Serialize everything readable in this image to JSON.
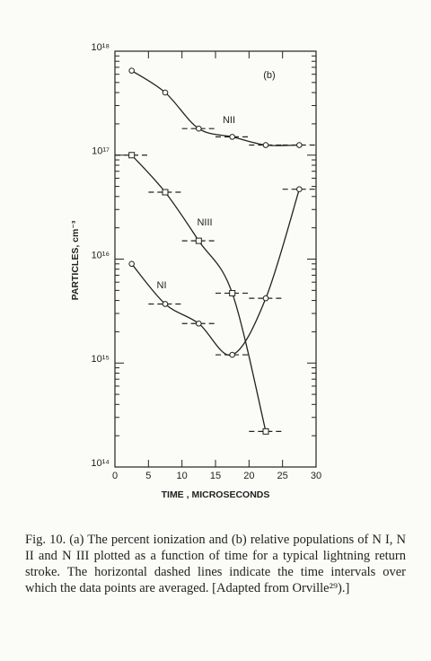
{
  "chart_data": {
    "type": "line",
    "annotation": "(b)",
    "x_label": "TIME , MICROSECONDS",
    "y_label": "PARTICLES, cm⁻³",
    "log_y": true,
    "xlim": [
      0,
      30
    ],
    "xticks": [
      0,
      5,
      10,
      15,
      20,
      25,
      30
    ],
    "ylim": [
      100000000000000.0,
      1e+18
    ],
    "yticks": [
      {
        "value": 100000000000000.0,
        "label": "10¹⁴"
      },
      {
        "value": 1000000000000000.0,
        "label": "10¹⁵"
      },
      {
        "value": 1e+16,
        "label": "10¹⁶"
      },
      {
        "value": 1e+17,
        "label": "10¹⁷"
      },
      {
        "value": 1e+18,
        "label": "10¹⁸"
      }
    ],
    "series": [
      {
        "name": "NII",
        "color": "#222222",
        "marker": "circle",
        "x": [
          2.5,
          7.5,
          12.5,
          17.5,
          22.5,
          27.5
        ],
        "values": [
          6.5e+17,
          4e+17,
          1.8e+17,
          1.5e+17,
          1.25e+17,
          1.25e+17
        ],
        "xerr": [
          null,
          null,
          2.5,
          2.5,
          2.5,
          2.5
        ]
      },
      {
        "name": "NIII",
        "color": "#222222",
        "marker": "square",
        "x": [
          2.5,
          7.5,
          12.5,
          17.5,
          22.5
        ],
        "values": [
          1e+17,
          4.4e+16,
          1.5e+16,
          4700000000000000.0,
          220000000000000.0
        ],
        "xerr": [
          2.5,
          2.5,
          2.5,
          2.5,
          2.5
        ]
      },
      {
        "name": "NI",
        "color": "#222222",
        "marker": "circle",
        "x": [
          2.5,
          7.5,
          12.5,
          17.5,
          22.5,
          27.5
        ],
        "values": [
          9000000000000000.0,
          3700000000000000.0,
          2400000000000000.0,
          1200000000000000.0,
          4200000000000000.0,
          4.7e+16
        ],
        "xerr": [
          null,
          2.5,
          2.5,
          2.5,
          2.5,
          2.5
        ]
      }
    ],
    "caption": "Fig. 10. (a) The percent ionization and (b) relative populations of N I, N II and N III plotted as a function of time for a typical lightning return stroke. The horizontal dashed lines indicate the time intervals over which the data points are averaged. [Adapted from Orville²⁹).]"
  }
}
